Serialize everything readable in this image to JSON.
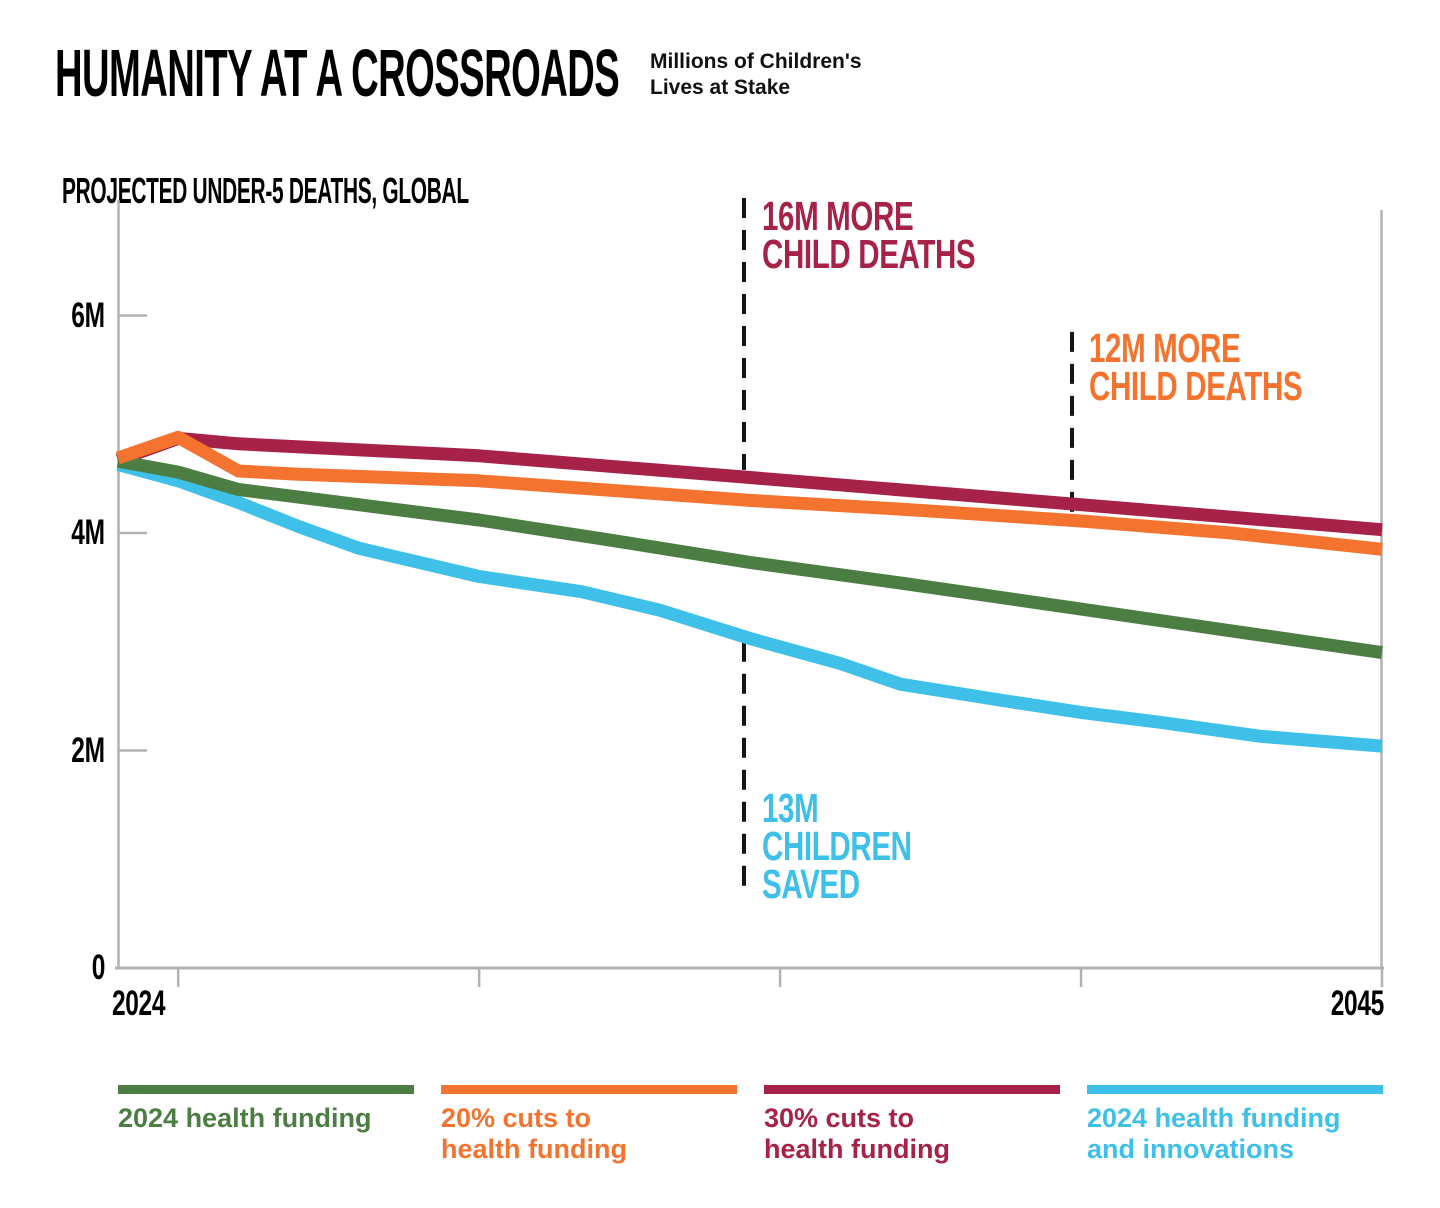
{
  "header": {
    "title": "HUMANITY AT A CROSSROADS",
    "subtitle_line1": "Millions of Children's",
    "subtitle_line2": "Lives at Stake"
  },
  "chart": {
    "title": "PROJECTED UNDER-5 DEATHS, GLOBAL"
  },
  "chart_data": {
    "type": "line",
    "title": "PROJECTED UNDER-5 DEATHS, GLOBAL",
    "units": "millions of under-5 deaths per year",
    "grid": false,
    "legend_position": "bottom",
    "x_axis": {
      "range": [
        2024,
        2045
      ],
      "minor_tick_years": [
        2025,
        2030,
        2035,
        2040,
        2045
      ],
      "tick_labels": [
        {
          "year": 2024,
          "label": "2024",
          "align": "left"
        },
        {
          "year": 2045,
          "label": "2045",
          "align": "right"
        }
      ]
    },
    "y_axis": {
      "range": [
        0,
        7.06
      ],
      "ticks": [
        {
          "value": 6,
          "label": "6M"
        },
        {
          "value": 4,
          "label": "4M"
        },
        {
          "value": 2,
          "label": "2M"
        },
        {
          "value": 0,
          "label": "0"
        }
      ]
    },
    "series": [
      {
        "name": "30% cuts to health funding",
        "color": "#a72248",
        "x": [
          2024,
          2025,
          2026,
          2030,
          2034.5,
          2040,
          2045
        ],
        "values": [
          4.67,
          4.87,
          4.82,
          4.71,
          4.51,
          4.26,
          4.03
        ]
      },
      {
        "name": "2024 health funding and innovations",
        "color": "#3ec0e8",
        "x": [
          2024,
          2025,
          2026,
          2027,
          2028,
          2030,
          2031.7,
          2033,
          2034.5,
          2036,
          2037,
          2038.7,
          2040,
          2041.3,
          2043,
          2045
        ],
        "values": [
          4.63,
          4.48,
          4.28,
          4.06,
          3.86,
          3.6,
          3.46,
          3.29,
          3.03,
          2.8,
          2.61,
          2.46,
          2.35,
          2.26,
          2.13,
          2.04
        ]
      },
      {
        "name": "2024 health funding",
        "color": "#4c7e44",
        "x": [
          2024,
          2025,
          2026,
          2028,
          2030,
          2032,
          2034.5,
          2037,
          2040,
          2042.5,
          2045
        ],
        "values": [
          4.66,
          4.56,
          4.4,
          4.26,
          4.12,
          3.95,
          3.73,
          3.54,
          3.3,
          3.1,
          2.9
        ]
      },
      {
        "name": "20% cuts to health funding",
        "color": "#f4742f",
        "x": [
          2024,
          2025,
          2026,
          2027,
          2030,
          2032,
          2034.5,
          2037,
          2040,
          2042.5,
          2045
        ],
        "values": [
          4.69,
          4.88,
          4.57,
          4.54,
          4.48,
          4.4,
          4.3,
          4.22,
          4.11,
          4.0,
          3.85
        ]
      }
    ],
    "annotation_markers": [
      {
        "id": "more-deaths-30pct",
        "year": 2034.4,
        "from_m": 7.08,
        "to_m": 4.58
      },
      {
        "id": "more-deaths-20pct",
        "year": 2039.85,
        "from_m": 5.85,
        "to_m": 4.17
      },
      {
        "id": "children-saved",
        "year": 2034.4,
        "from_m": 3.0,
        "to_m": 0.7
      }
    ]
  },
  "annotations": {
    "crimson": {
      "lines": [
        "16M MORE",
        "CHILD DEATHS"
      ],
      "color": "#a72248"
    },
    "orange": {
      "lines": [
        "12M MORE",
        "CHILD DEATHS"
      ],
      "color": "#f4742f"
    },
    "cyan": {
      "lines": [
        "13M",
        "CHILDREN",
        "SAVED"
      ],
      "color": "#3ec0e8"
    }
  },
  "legend": {
    "items": [
      {
        "label_lines": [
          "2024 health funding"
        ],
        "color": "#4c7e44"
      },
      {
        "label_lines": [
          "20% cuts to",
          "health funding"
        ],
        "color": "#f4742f"
      },
      {
        "label_lines": [
          "30% cuts to",
          "health funding"
        ],
        "color": "#a72248"
      },
      {
        "label_lines": [
          "2024 health funding",
          "and innovations"
        ],
        "color": "#3ec0e8"
      }
    ]
  },
  "style": {
    "axis_color": "#b2b2b2",
    "dash_color": "#151515",
    "line_width": 13
  }
}
